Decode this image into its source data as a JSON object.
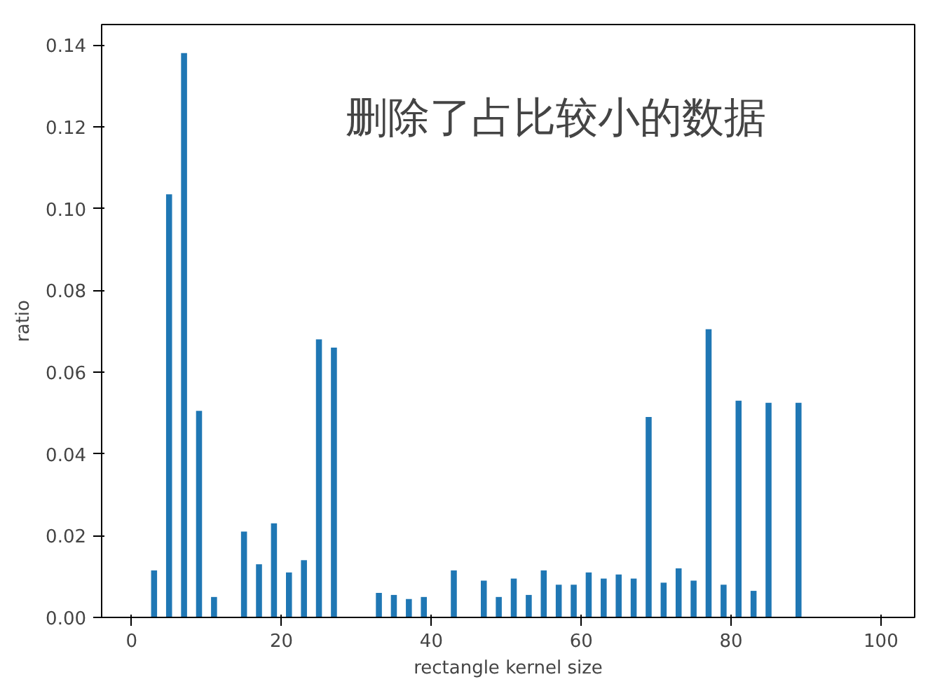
{
  "chart_data": {
    "type": "bar",
    "xlabel": "rectangle kernel size",
    "ylabel": "ratio",
    "annotations": [
      "删除了占比较小的数据"
    ],
    "x": [
      3,
      5,
      7,
      9,
      11,
      15,
      17,
      19,
      21,
      23,
      25,
      27,
      33,
      35,
      37,
      39,
      43,
      47,
      49,
      51,
      53,
      55,
      57,
      59,
      61,
      63,
      65,
      67,
      69,
      71,
      73,
      75,
      77,
      79,
      81,
      83,
      85,
      89
    ],
    "values": [
      0.0115,
      0.1035,
      0.138,
      0.0505,
      0.005,
      0.021,
      0.013,
      0.023,
      0.011,
      0.014,
      0.068,
      0.066,
      0.006,
      0.0055,
      0.0045,
      0.005,
      0.0115,
      0.009,
      0.005,
      0.0095,
      0.0055,
      0.0115,
      0.008,
      0.008,
      0.011,
      0.0095,
      0.0105,
      0.0095,
      0.049,
      0.0085,
      0.012,
      0.009,
      0.0705,
      0.008,
      0.053,
      0.0065,
      0.0525,
      0.0525
    ],
    "color": "#1f77b4",
    "xlim": [
      -4,
      104.5
    ],
    "xticks": [
      0,
      20,
      40,
      60,
      80,
      100
    ],
    "ylim": [
      0,
      0.145
    ],
    "yticks": [
      {
        "value": 0,
        "label": "0.00"
      },
      {
        "value": 0.02,
        "label": "0.02"
      },
      {
        "value": 0.04,
        "label": "0.04"
      },
      {
        "value": 0.06,
        "label": "0.06"
      },
      {
        "value": 0.08,
        "label": "0.08"
      },
      {
        "value": 0.1,
        "label": "0.10"
      },
      {
        "value": 0.12,
        "label": "0.12"
      },
      {
        "value": 0.14,
        "label": "0.14"
      }
    ],
    "grid": false
  }
}
